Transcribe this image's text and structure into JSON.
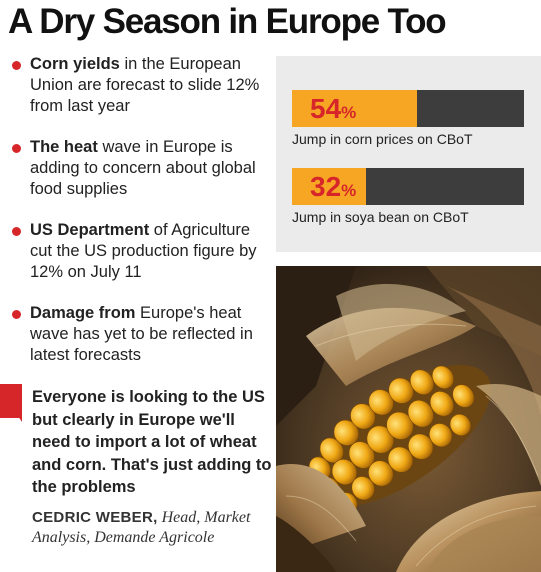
{
  "title": "A Dry Season in Europe Too",
  "bullets": [
    {
      "lead": "Corn yields",
      "rest": " in the European Union are forecast to slide 12% from last year"
    },
    {
      "lead": "The heat",
      "rest": " wave in Europe is adding to concern about global food supplies"
    },
    {
      "lead": "US Department",
      "rest": " of Agriculture cut the US production figure by 12% on July 11"
    },
    {
      "lead": "Damage from",
      "rest": " Europe's heat wave has yet to be reflected in latest forecasts"
    }
  ],
  "quote": {
    "text": "Everyone is looking to the US but clearly in Europe we'll need to import a lot of wheat and corn. That's just adding to the problems",
    "name": "CEDRIC WEBER,",
    "role": " Head, Market Analysis, Demande Agricole"
  },
  "stats": [
    {
      "number": "54",
      "unit": "%",
      "fraction": 0.54,
      "label": "Jump in corn prices on CBoT"
    },
    {
      "number": "32",
      "unit": "%",
      "fraction": 0.32,
      "label": "Jump in soya bean on CBoT"
    }
  ],
  "colors": {
    "accent_red": "#d7262a",
    "bar_fill": "#f6a623",
    "bar_track": "#3d3d3d",
    "panel_bg": "#ebebeb"
  }
}
